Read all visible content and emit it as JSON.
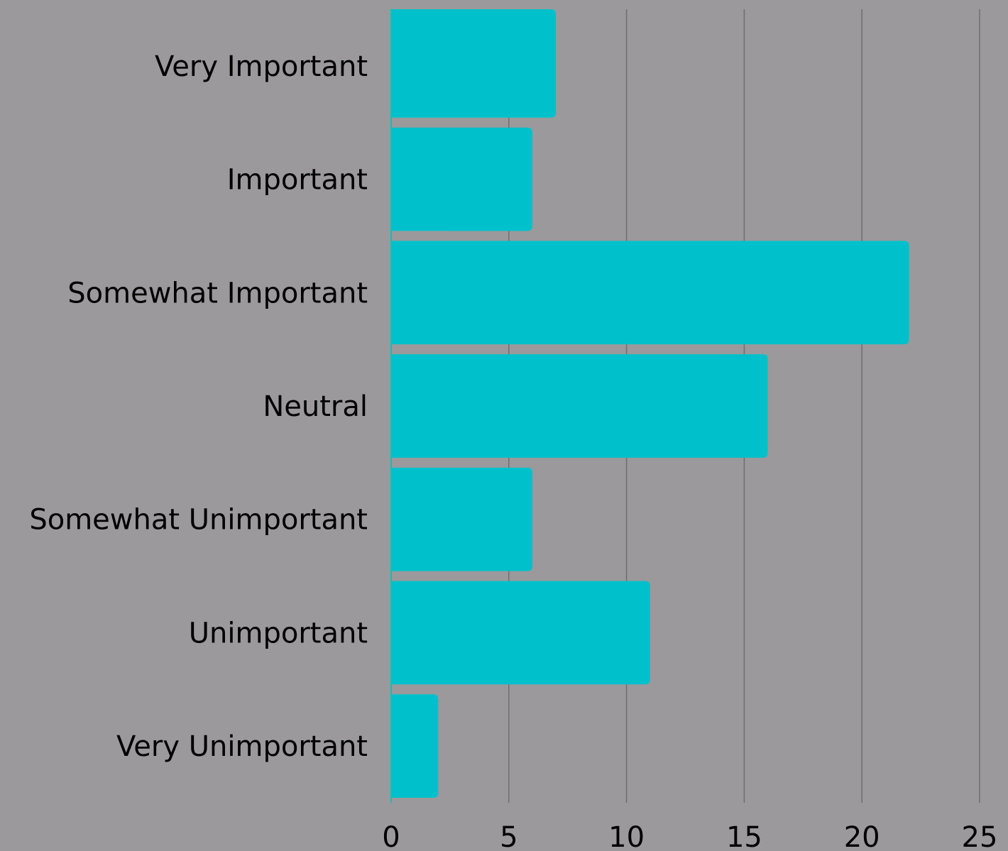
{
  "chart_data": {
    "type": "bar",
    "orientation": "horizontal",
    "categories": [
      "Very Important",
      "Important",
      "Somewhat Important",
      "Neutral",
      "Somewhat Unimportant",
      "Unimportant",
      "Very Unimportant"
    ],
    "values": [
      7,
      6,
      22,
      16,
      6,
      11,
      2
    ],
    "xlim": [
      0,
      25
    ],
    "xticks": [
      "0",
      "5",
      "10",
      "15",
      "20",
      "25"
    ],
    "title": "",
    "xlabel": "",
    "ylabel": "",
    "grid": "vertical",
    "legend": "none",
    "colors": {
      "background": "#9b999c",
      "bar": "#00c1cb",
      "grid": "#6f6d70",
      "text": "#000000"
    }
  }
}
